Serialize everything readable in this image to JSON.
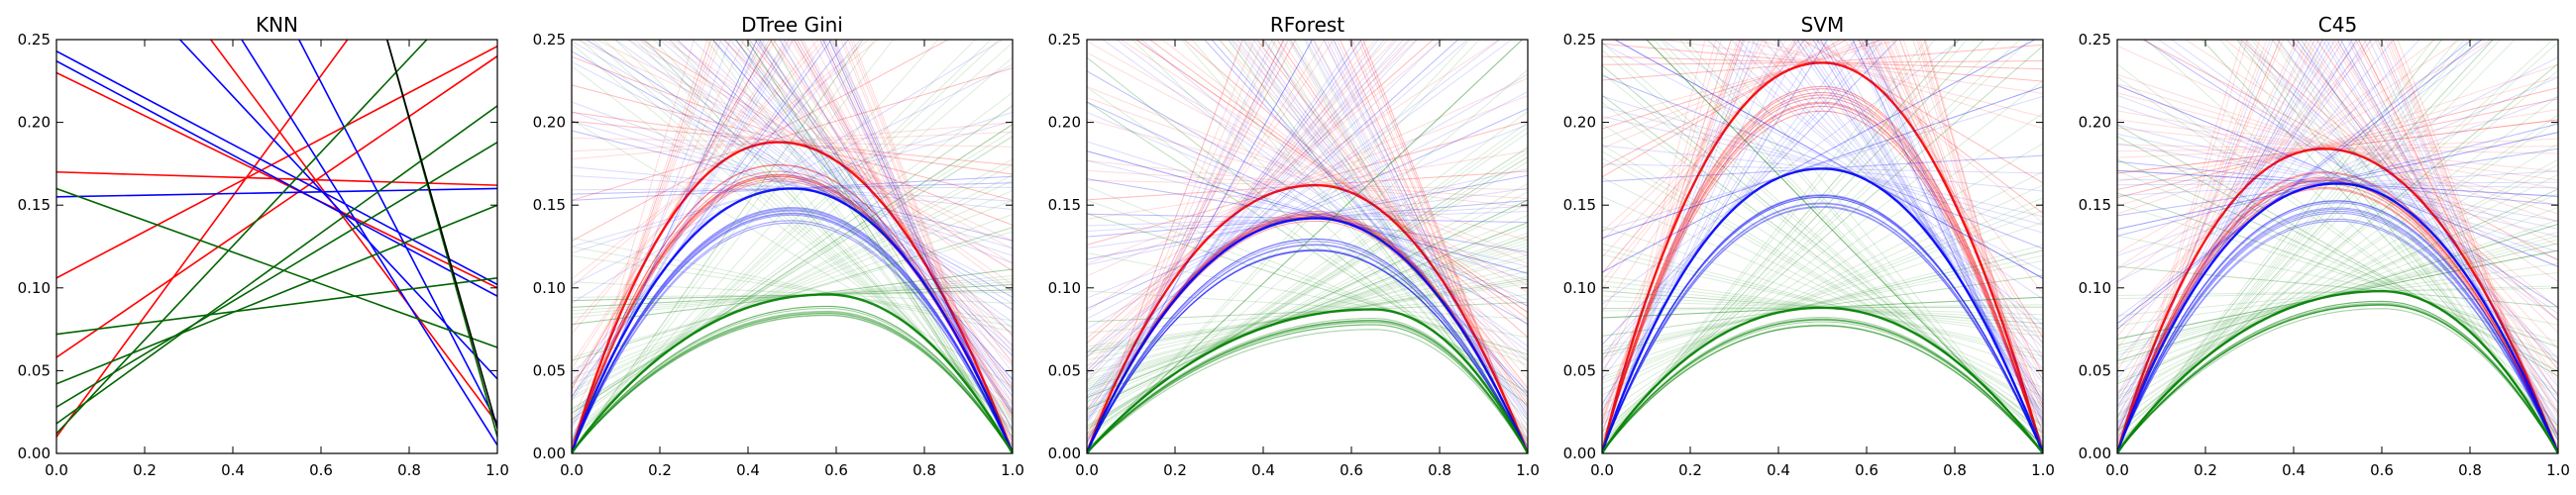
{
  "chart_data": [
    {
      "type": "line",
      "title": "KNN",
      "xlim": [
        0.0,
        1.0
      ],
      "ylim": [
        0.0,
        0.25
      ],
      "xticks": [
        "0.0",
        "0.2",
        "0.4",
        "0.6",
        "0.8",
        "1.0"
      ],
      "yticks": [
        "0.00",
        "0.05",
        "0.10",
        "0.15",
        "0.20",
        "0.25"
      ],
      "grid": false,
      "series": [
        {
          "color": "#ff0000",
          "lines": [
            [
              0.0,
              0.17,
              1.0,
              0.162
            ],
            [
              0.0,
              0.106,
              1.0,
              0.246
            ],
            [
              0.0,
              0.058,
              1.0,
              0.24
            ],
            [
              0.0,
              0.23,
              1.0,
              0.1
            ],
            [
              0.35,
              0.25,
              1.0,
              0.018
            ],
            [
              0.0,
              0.01,
              0.66,
              0.25
            ]
          ]
        },
        {
          "color": "#0000ff",
          "lines": [
            [
              0.0,
              0.155,
              1.0,
              0.16
            ],
            [
              0.0,
              0.237,
              1.0,
              0.095
            ],
            [
              0.0,
              0.243,
              1.0,
              0.102
            ],
            [
              0.28,
              0.25,
              1.0,
              0.045
            ],
            [
              0.42,
              0.25,
              1.0,
              0.005
            ],
            [
              0.55,
              0.25,
              1.0,
              0.018
            ]
          ]
        },
        {
          "color": "#006400",
          "lines": [
            [
              0.0,
              0.16,
              1.0,
              0.064
            ],
            [
              0.0,
              0.072,
              1.0,
              0.106
            ],
            [
              0.0,
              0.042,
              1.0,
              0.15
            ],
            [
              0.0,
              0.028,
              1.0,
              0.188
            ],
            [
              0.0,
              0.018,
              1.0,
              0.21
            ],
            [
              0.75,
              0.25,
              1.0,
              0.01
            ],
            [
              0.0,
              0.012,
              0.84,
              0.25
            ]
          ]
        },
        {
          "color": "#000000",
          "lines": [
            [
              0.75,
              0.25,
              1.0,
              0.015
            ]
          ]
        }
      ]
    },
    {
      "type": "line",
      "title": "DTree Gini",
      "xlim": [
        0.0,
        1.0
      ],
      "ylim": [
        0.0,
        0.25
      ],
      "xticks": [
        "0.0",
        "0.2",
        "0.4",
        "0.6",
        "0.8",
        "1.0"
      ],
      "yticks": [
        "0.00",
        "0.05",
        "0.10",
        "0.15",
        "0.20",
        "0.25"
      ],
      "grid": false,
      "series": [
        {
          "color": "#ff0000",
          "peak_x": 0.47,
          "peak_y": 0.188
        },
        {
          "color": "#0000ff",
          "peak_x": 0.5,
          "peak_y": 0.16
        },
        {
          "color": "#008000",
          "peak_x": 0.58,
          "peak_y": 0.096
        }
      ]
    },
    {
      "type": "line",
      "title": "RForest",
      "xlim": [
        0.0,
        1.0
      ],
      "ylim": [
        0.0,
        0.25
      ],
      "xticks": [
        "0.0",
        "0.2",
        "0.4",
        "0.6",
        "0.8",
        "1.0"
      ],
      "yticks": [
        "0.00",
        "0.05",
        "0.10",
        "0.15",
        "0.20",
        "0.25"
      ],
      "grid": false,
      "series": [
        {
          "color": "#ff0000",
          "peak_x": 0.52,
          "peak_y": 0.162
        },
        {
          "color": "#0000ff",
          "peak_x": 0.52,
          "peak_y": 0.142
        },
        {
          "color": "#008000",
          "peak_x": 0.65,
          "peak_y": 0.087
        }
      ]
    },
    {
      "type": "line",
      "title": "SVM",
      "xlim": [
        0.0,
        1.0
      ],
      "ylim": [
        0.0,
        0.25
      ],
      "xticks": [
        "0.0",
        "0.2",
        "0.4",
        "0.6",
        "0.8",
        "1.0"
      ],
      "yticks": [
        "0.00",
        "0.05",
        "0.10",
        "0.15",
        "0.20",
        "0.25"
      ],
      "grid": false,
      "series": [
        {
          "color": "#ff0000",
          "peak_x": 0.5,
          "peak_y": 0.236
        },
        {
          "color": "#0000ff",
          "peak_x": 0.5,
          "peak_y": 0.172
        },
        {
          "color": "#008000",
          "peak_x": 0.5,
          "peak_y": 0.088
        }
      ]
    },
    {
      "type": "line",
      "title": "C45",
      "xlim": [
        0.0,
        1.0
      ],
      "ylim": [
        0.0,
        0.25
      ],
      "xticks": [
        "0.0",
        "0.2",
        "0.4",
        "0.6",
        "0.8",
        "1.0"
      ],
      "yticks": [
        "0.00",
        "0.05",
        "0.10",
        "0.15",
        "0.20",
        "0.25"
      ],
      "grid": false,
      "series": [
        {
          "color": "#ff0000",
          "peak_x": 0.47,
          "peak_y": 0.184
        },
        {
          "color": "#0000ff",
          "peak_x": 0.5,
          "peak_y": 0.163
        },
        {
          "color": "#008000",
          "peak_x": 0.6,
          "peak_y": 0.098
        }
      ]
    }
  ]
}
